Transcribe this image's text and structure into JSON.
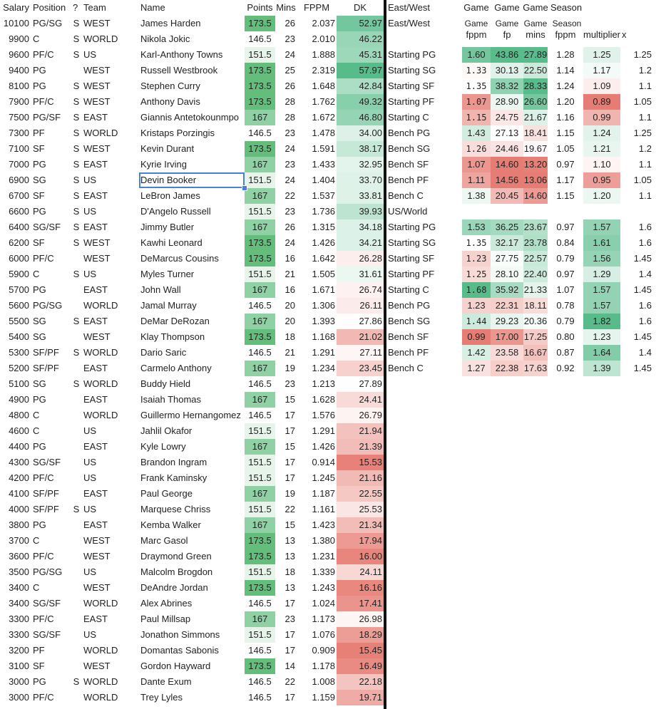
{
  "left": {
    "headers": [
      "Salary",
      "Position",
      "?",
      "Team",
      "Name",
      "Points",
      "Mins",
      "FPPM",
      "DK"
    ],
    "rows": [
      [
        "10100",
        "PG/SG",
        "S",
        "WEST",
        "James Harden",
        "173.5",
        "26",
        "2.037",
        "52.97"
      ],
      [
        "9900",
        "C",
        "S",
        "WORLD",
        "Nikola Jokic",
        "146.5",
        "23",
        "2.010",
        "46.22"
      ],
      [
        "9600",
        "PF/C",
        "S",
        "US",
        "Karl-Anthony Towns",
        "151.5",
        "24",
        "1.888",
        "45.31"
      ],
      [
        "9400",
        "PG",
        "",
        "WEST",
        "Russell Westbrook",
        "173.5",
        "25",
        "2.319",
        "57.97"
      ],
      [
        "8100",
        "PG",
        "S",
        "WEST",
        "Stephen Curry",
        "173.5",
        "26",
        "1.648",
        "42.84"
      ],
      [
        "7900",
        "PF/C",
        "S",
        "WEST",
        "Anthony Davis",
        "173.5",
        "28",
        "1.762",
        "49.32"
      ],
      [
        "7500",
        "PG/SF",
        "S",
        "EAST",
        "Giannis Antetokounmpo",
        "167",
        "28",
        "1.672",
        "46.80"
      ],
      [
        "7300",
        "PF",
        "S",
        "WORLD",
        "Kristaps Porzingis",
        "146.5",
        "23",
        "1.478",
        "34.00"
      ],
      [
        "7100",
        "SF",
        "S",
        "WEST",
        "Kevin Durant",
        "173.5",
        "24",
        "1.591",
        "38.17"
      ],
      [
        "7000",
        "PG",
        "S",
        "EAST",
        "Kyrie Irving",
        "167",
        "23",
        "1.433",
        "32.95"
      ],
      [
        "6900",
        "SG",
        "S",
        "US",
        "Devin Booker",
        "151.5",
        "24",
        "1.404",
        "33.70"
      ],
      [
        "6700",
        "SF",
        "S",
        "EAST",
        "LeBron James",
        "167",
        "22",
        "1.537",
        "33.81"
      ],
      [
        "6600",
        "PG",
        "S",
        "US",
        "D'Angelo Russell",
        "151.5",
        "23",
        "1.736",
        "39.93"
      ],
      [
        "6400",
        "SG/SF",
        "S",
        "EAST",
        "Jimmy Butler",
        "167",
        "26",
        "1.315",
        "34.18"
      ],
      [
        "6200",
        "SF",
        "S",
        "WEST",
        "Kawhi Leonard",
        "173.5",
        "24",
        "1.426",
        "34.21"
      ],
      [
        "6000",
        "PF/C",
        "",
        "WEST",
        "DeMarcus Cousins",
        "173.5",
        "16",
        "1.642",
        "26.28"
      ],
      [
        "5900",
        "C",
        "S",
        "US",
        "Myles Turner",
        "151.5",
        "21",
        "1.505",
        "31.61"
      ],
      [
        "5700",
        "PG",
        "",
        "EAST",
        "John Wall",
        "167",
        "16",
        "1.671",
        "26.74"
      ],
      [
        "5600",
        "PG/SG",
        "",
        "WORLD",
        "Jamal Murray",
        "146.5",
        "20",
        "1.306",
        "26.11"
      ],
      [
        "5500",
        "SG",
        "S",
        "EAST",
        "DeMar DeRozan",
        "167",
        "20",
        "1.393",
        "27.86"
      ],
      [
        "5400",
        "SG",
        "",
        "WEST",
        "Klay Thompson",
        "173.5",
        "18",
        "1.168",
        "21.02"
      ],
      [
        "5300",
        "SF/PF",
        "S",
        "WORLD",
        "Dario Saric",
        "146.5",
        "21",
        "1.291",
        "27.11"
      ],
      [
        "5200",
        "SF/PF",
        "",
        "EAST",
        "Carmelo Anthony",
        "167",
        "19",
        "1.234",
        "23.45"
      ],
      [
        "5100",
        "SG",
        "S",
        "WORLD",
        "Buddy Hield",
        "146.5",
        "23",
        "1.213",
        "27.89"
      ],
      [
        "4900",
        "PG",
        "",
        "EAST",
        "Isaiah Thomas",
        "167",
        "15",
        "1.628",
        "24.41"
      ],
      [
        "4800",
        "C",
        "",
        "WORLD",
        "Guillermo Hernangomez",
        "146.5",
        "17",
        "1.576",
        "26.79"
      ],
      [
        "4600",
        "C",
        "",
        "US",
        "Jahlil Okafor",
        "151.5",
        "17",
        "1.291",
        "21.94"
      ],
      [
        "4400",
        "PG",
        "",
        "EAST",
        "Kyle Lowry",
        "167",
        "15",
        "1.426",
        "21.39"
      ],
      [
        "4300",
        "SG/SF",
        "",
        "US",
        "Brandon Ingram",
        "151.5",
        "17",
        "0.914",
        "15.53"
      ],
      [
        "4200",
        "PF/C",
        "",
        "US",
        "Frank Kaminsky",
        "151.5",
        "17",
        "1.245",
        "21.16"
      ],
      [
        "4100",
        "SF/PF",
        "",
        "EAST",
        "Paul George",
        "167",
        "19",
        "1.187",
        "22.55"
      ],
      [
        "4000",
        "SF/PF",
        "S",
        "US",
        "Marquese Chriss",
        "151.5",
        "22",
        "1.161",
        "25.53"
      ],
      [
        "3800",
        "PG",
        "",
        "EAST",
        "Kemba Walker",
        "167",
        "15",
        "1.423",
        "21.34"
      ],
      [
        "3700",
        "C",
        "",
        "WEST",
        "Marc Gasol",
        "173.5",
        "13",
        "1.380",
        "17.94"
      ],
      [
        "3600",
        "PF/C",
        "",
        "WEST",
        "Draymond Green",
        "173.5",
        "13",
        "1.231",
        "16.00"
      ],
      [
        "3500",
        "PG/SG",
        "",
        "US",
        "Malcolm Brogdon",
        "151.5",
        "18",
        "1.339",
        "24.11"
      ],
      [
        "3400",
        "C",
        "",
        "WEST",
        "DeAndre Jordan",
        "173.5",
        "13",
        "1.243",
        "16.16"
      ],
      [
        "3400",
        "SG/SF",
        "",
        "WORLD",
        "Alex Abrines",
        "146.5",
        "17",
        "1.024",
        "17.41"
      ],
      [
        "3300",
        "PF/C",
        "",
        "EAST",
        "Paul Millsap",
        "167",
        "23",
        "1.173",
        "26.98"
      ],
      [
        "3300",
        "SG/SF",
        "",
        "US",
        "Jonathon Simmons",
        "151.5",
        "17",
        "1.076",
        "18.29"
      ],
      [
        "3200",
        "PF",
        "",
        "WORLD",
        "Domantas Sabonis",
        "146.5",
        "17",
        "0.909",
        "15.45"
      ],
      [
        "3100",
        "SF",
        "",
        "WEST",
        "Gordon Hayward",
        "173.5",
        "14",
        "1.178",
        "16.49"
      ],
      [
        "3000",
        "PG",
        "S",
        "WORLD",
        "Dante Exum",
        "146.5",
        "22",
        "1.008",
        "22.18"
      ],
      [
        "3000",
        "PF/C",
        "",
        "WORLD",
        "Trey Lyles",
        "146.5",
        "17",
        "1.159",
        "19.71"
      ]
    ]
  },
  "right": {
    "header1": [
      "East/West",
      "Game",
      "Game",
      "Game",
      "Season"
    ],
    "header2": [
      "East/West",
      "Game",
      "Game",
      "Game",
      "Season"
    ],
    "header3": [
      "fppm",
      "fp",
      "mins",
      "fppm",
      "multiplier",
      "x"
    ],
    "section_us": "US/World",
    "ew_rows": [
      [
        "Starting PG",
        "1.60",
        "43.86",
        "27.89",
        "1.28",
        "1.25",
        "1.25"
      ],
      [
        "Starting SG",
        "1.33",
        "30.13",
        "22.50",
        "1.14",
        "1.17",
        "1.2"
      ],
      [
        "Starting SF",
        "1.35",
        "38.32",
        "28.33",
        "1.24",
        "1.09",
        "1.1"
      ],
      [
        "Starting PF",
        "1.07",
        "28.90",
        "26.60",
        "1.20",
        "0.89",
        "1.05"
      ],
      [
        "Starting C",
        "1.15",
        "24.75",
        "21.67",
        "1.16",
        "0.99",
        "1.1"
      ],
      [
        "Bench PG",
        "1.43",
        "27.13",
        "18.41",
        "1.15",
        "1.24",
        "1.25"
      ],
      [
        "Bench SG",
        "1.26",
        "24.46",
        "19.67",
        "1.05",
        "1.21",
        "1.2"
      ],
      [
        "Bench SF",
        "1.07",
        "14.60",
        "13.20",
        "0.97",
        "1.10",
        "1.1"
      ],
      [
        "Bench PF",
        "1.11",
        "14.56",
        "13.06",
        "1.17",
        "0.95",
        "1.05"
      ],
      [
        "Bench C",
        "1.38",
        "20.45",
        "14.60",
        "1.15",
        "1.20",
        "1.1"
      ]
    ],
    "us_rows": [
      [
        "Starting PG",
        "1.53",
        "36.25",
        "23.67",
        "0.97",
        "1.57",
        "1.6"
      ],
      [
        "Starting SG",
        "1.35",
        "32.17",
        "23.78",
        "0.84",
        "1.61",
        "1.6"
      ],
      [
        "Starting SF",
        "1.23",
        "27.75",
        "22.57",
        "0.79",
        "1.56",
        "1.45"
      ],
      [
        "Starting PF",
        "1.25",
        "28.10",
        "22.40",
        "0.97",
        "1.29",
        "1.4"
      ],
      [
        "Starting C",
        "1.68",
        "35.92",
        "21.33",
        "1.07",
        "1.57",
        "1.45"
      ],
      [
        "Bench PG",
        "1.23",
        "22.31",
        "18.11",
        "0.78",
        "1.57",
        "1.6"
      ],
      [
        "Bench SG",
        "1.44",
        "29.23",
        "20.36",
        "0.79",
        "1.82",
        "1.6"
      ],
      [
        "Bench SF",
        "0.99",
        "17.00",
        "17.25",
        "0.80",
        "1.23",
        "1.45"
      ],
      [
        "Bench PF",
        "1.42",
        "23.58",
        "16.67",
        "0.87",
        "1.64",
        "1.4"
      ],
      [
        "Bench C",
        "1.27",
        "22.38",
        "17.63",
        "0.92",
        "1.39",
        "1.45"
      ]
    ]
  },
  "colors": {
    "green_strong": "#57bb8a",
    "red_strong": "#e67c73",
    "selection": "#4a7fd6"
  }
}
